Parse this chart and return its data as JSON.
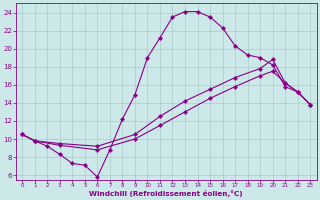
{
  "xlabel": "Windchill (Refroidissement éolien,°C)",
  "bg_color": "#cce8e8",
  "line_color": "#880088",
  "grid_color": "#aacccc",
  "xlim": [
    -0.5,
    23.5
  ],
  "ylim": [
    5.5,
    25.0
  ],
  "yticks": [
    6,
    8,
    10,
    12,
    14,
    16,
    18,
    20,
    22,
    24
  ],
  "xticks": [
    0,
    1,
    2,
    3,
    4,
    5,
    6,
    7,
    8,
    9,
    10,
    11,
    12,
    13,
    14,
    15,
    16,
    17,
    18,
    19,
    20,
    21,
    22,
    23
  ],
  "curve1_x": [
    0,
    1,
    2,
    3,
    4,
    5,
    6,
    7,
    8,
    9,
    10,
    11,
    12,
    13,
    14,
    15,
    16,
    17,
    18,
    19,
    20,
    21,
    22,
    23
  ],
  "curve1_y": [
    10.5,
    9.8,
    9.2,
    8.3,
    7.3,
    7.1,
    5.8,
    8.8,
    12.2,
    14.9,
    19.0,
    21.2,
    23.5,
    24.1,
    24.1,
    23.5,
    22.3,
    20.3,
    19.3,
    19.0,
    18.2,
    15.8,
    15.2,
    13.8
  ],
  "curve2_x": [
    0,
    1,
    3,
    6,
    9,
    11,
    13,
    15,
    17,
    19,
    20,
    21,
    22,
    23
  ],
  "curve2_y": [
    10.5,
    9.8,
    9.5,
    9.2,
    10.5,
    12.5,
    14.2,
    15.5,
    16.8,
    17.8,
    18.8,
    16.2,
    15.2,
    13.8
  ],
  "curve3_x": [
    0,
    1,
    3,
    6,
    9,
    11,
    13,
    15,
    17,
    19,
    20,
    21,
    22,
    23
  ],
  "curve3_y": [
    10.5,
    9.8,
    9.3,
    8.8,
    10.0,
    11.5,
    13.0,
    14.5,
    15.8,
    17.0,
    17.5,
    16.2,
    15.2,
    13.8
  ]
}
